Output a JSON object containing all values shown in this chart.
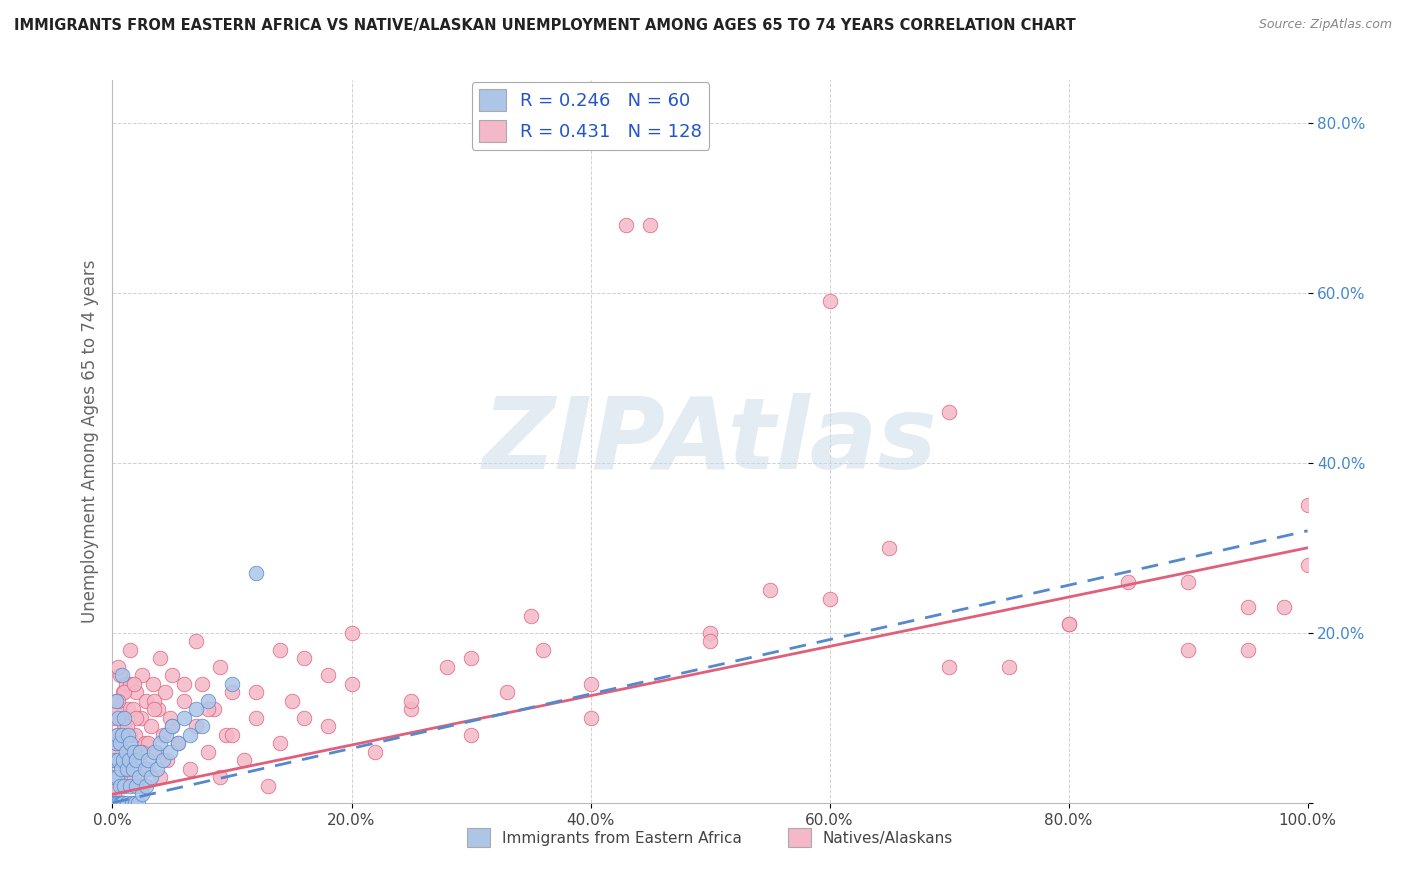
{
  "title": "IMMIGRANTS FROM EASTERN AFRICA VS NATIVE/ALASKAN UNEMPLOYMENT AMONG AGES 65 TO 74 YEARS CORRELATION CHART",
  "source": "Source: ZipAtlas.com",
  "ylabel": "Unemployment Among Ages 65 to 74 years",
  "legend_label_blue": "Immigrants from Eastern Africa",
  "legend_label_pink": "Natives/Alaskans",
  "blue_R": 0.246,
  "blue_N": 60,
  "pink_R": 0.431,
  "pink_N": 128,
  "blue_color": "#adc6e8",
  "pink_color": "#f4b8c8",
  "blue_line_color": "#5588cc",
  "pink_line_color": "#e0607a",
  "xlim": [
    0,
    1
  ],
  "ylim": [
    0,
    0.85
  ],
  "x_ticks": [
    0.0,
    0.2,
    0.4,
    0.6,
    0.8,
    1.0
  ],
  "x_tick_labels": [
    "0.0%",
    "20.0%",
    "40.0%",
    "60.0%",
    "80.0%",
    "100.0%"
  ],
  "y_ticks": [
    0.0,
    0.2,
    0.4,
    0.6,
    0.8
  ],
  "y_tick_labels": [
    "",
    "20.0%",
    "40.0%",
    "60.0%",
    "80.0%"
  ],
  "watermark": "ZIPAtlas",
  "blue_trend_x0": 0.0,
  "blue_trend_x1": 1.0,
  "blue_trend_y0": 0.0,
  "blue_trend_y1": 0.32,
  "pink_trend_x0": 0.0,
  "pink_trend_x1": 1.0,
  "pink_trend_y0": 0.01,
  "pink_trend_y1": 0.3,
  "blue_scatter_x": [
    0.001,
    0.001,
    0.002,
    0.002,
    0.003,
    0.003,
    0.003,
    0.004,
    0.004,
    0.005,
    0.005,
    0.005,
    0.006,
    0.006,
    0.006,
    0.007,
    0.007,
    0.008,
    0.008,
    0.008,
    0.009,
    0.009,
    0.01,
    0.01,
    0.011,
    0.012,
    0.012,
    0.013,
    0.014,
    0.015,
    0.015,
    0.016,
    0.017,
    0.018,
    0.019,
    0.02,
    0.02,
    0.021,
    0.022,
    0.023,
    0.025,
    0.027,
    0.028,
    0.03,
    0.032,
    0.035,
    0.037,
    0.04,
    0.042,
    0.045,
    0.048,
    0.05,
    0.055,
    0.06,
    0.065,
    0.07,
    0.075,
    0.08,
    0.1,
    0.12
  ],
  "blue_scatter_y": [
    0.0,
    0.03,
    0.0,
    0.05,
    0.0,
    0.07,
    0.12,
    0.03,
    0.08,
    0.0,
    0.05,
    0.1,
    0.02,
    0.0,
    0.07,
    0.0,
    0.04,
    0.0,
    0.08,
    0.15,
    0.0,
    0.05,
    0.1,
    0.02,
    0.06,
    0.0,
    0.04,
    0.08,
    0.05,
    0.02,
    0.07,
    0.0,
    0.04,
    0.06,
    0.0,
    0.02,
    0.05,
    0.0,
    0.03,
    0.06,
    0.01,
    0.04,
    0.02,
    0.05,
    0.03,
    0.06,
    0.04,
    0.07,
    0.05,
    0.08,
    0.06,
    0.09,
    0.07,
    0.1,
    0.08,
    0.11,
    0.09,
    0.12,
    0.14,
    0.27
  ],
  "pink_scatter_x": [
    0.001,
    0.001,
    0.002,
    0.002,
    0.003,
    0.003,
    0.004,
    0.004,
    0.005,
    0.005,
    0.006,
    0.006,
    0.007,
    0.007,
    0.008,
    0.008,
    0.009,
    0.009,
    0.01,
    0.01,
    0.011,
    0.012,
    0.013,
    0.014,
    0.015,
    0.015,
    0.016,
    0.017,
    0.018,
    0.019,
    0.02,
    0.022,
    0.024,
    0.025,
    0.027,
    0.028,
    0.03,
    0.032,
    0.034,
    0.036,
    0.038,
    0.04,
    0.042,
    0.044,
    0.046,
    0.048,
    0.05,
    0.055,
    0.06,
    0.065,
    0.07,
    0.075,
    0.08,
    0.085,
    0.09,
    0.095,
    0.1,
    0.11,
    0.12,
    0.13,
    0.14,
    0.15,
    0.16,
    0.18,
    0.2,
    0.22,
    0.25,
    0.28,
    0.3,
    0.33,
    0.36,
    0.4,
    0.43,
    0.45,
    0.5,
    0.55,
    0.6,
    0.65,
    0.7,
    0.75,
    0.8,
    0.85,
    0.9,
    0.95,
    1.0,
    0.001,
    0.002,
    0.003,
    0.005,
    0.007,
    0.01,
    0.015,
    0.02,
    0.025,
    0.03,
    0.035,
    0.04,
    0.05,
    0.06,
    0.07,
    0.08,
    0.09,
    0.1,
    0.12,
    0.14,
    0.16,
    0.18,
    0.2,
    0.25,
    0.3,
    0.35,
    0.4,
    0.5,
    0.6,
    0.7,
    0.8,
    0.9,
    0.95,
    0.98,
    1.0,
    0.001,
    0.003,
    0.005,
    0.008,
    0.012,
    0.018,
    0.025,
    0.035
  ],
  "pink_scatter_y": [
    0.0,
    0.05,
    0.0,
    0.1,
    0.0,
    0.07,
    0.0,
    0.12,
    0.03,
    0.08,
    0.0,
    0.15,
    0.05,
    0.1,
    0.02,
    0.08,
    0.0,
    0.13,
    0.04,
    0.09,
    0.14,
    0.06,
    0.11,
    0.03,
    0.08,
    0.14,
    0.06,
    0.11,
    0.03,
    0.08,
    0.13,
    0.05,
    0.1,
    0.02,
    0.07,
    0.12,
    0.04,
    0.09,
    0.14,
    0.06,
    0.11,
    0.03,
    0.08,
    0.13,
    0.05,
    0.1,
    0.15,
    0.07,
    0.12,
    0.04,
    0.09,
    0.14,
    0.06,
    0.11,
    0.03,
    0.08,
    0.13,
    0.05,
    0.1,
    0.02,
    0.07,
    0.12,
    0.17,
    0.09,
    0.14,
    0.06,
    0.11,
    0.16,
    0.08,
    0.13,
    0.18,
    0.1,
    0.68,
    0.68,
    0.2,
    0.25,
    0.59,
    0.3,
    0.46,
    0.16,
    0.21,
    0.26,
    0.18,
    0.23,
    0.35,
    0.01,
    0.06,
    0.11,
    0.16,
    0.08,
    0.13,
    0.18,
    0.1,
    0.15,
    0.07,
    0.12,
    0.17,
    0.09,
    0.14,
    0.19,
    0.11,
    0.16,
    0.08,
    0.13,
    0.18,
    0.1,
    0.15,
    0.2,
    0.12,
    0.17,
    0.22,
    0.14,
    0.19,
    0.24,
    0.16,
    0.21,
    0.26,
    0.18,
    0.23,
    0.28,
    0.02,
    0.07,
    0.12,
    0.04,
    0.09,
    0.14,
    0.06,
    0.11
  ]
}
